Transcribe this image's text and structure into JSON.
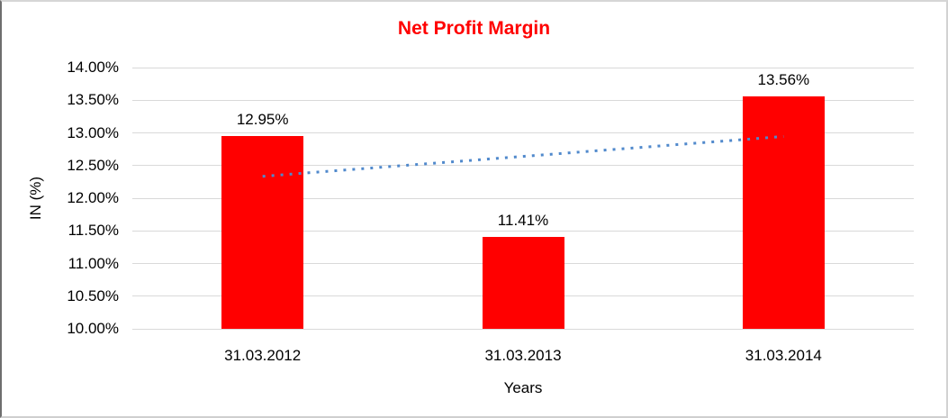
{
  "chart_data": {
    "type": "bar",
    "title": "Net Profit Margin",
    "xlabel": "Years",
    "ylabel": "IN (%)",
    "categories": [
      "31.03.2012",
      "31.03.2013",
      "31.03.2014"
    ],
    "values": [
      12.95,
      11.41,
      13.56
    ],
    "data_labels": [
      "12.95%",
      "11.41%",
      "13.56%"
    ],
    "ylim": [
      10.0,
      14.0
    ],
    "ytick_step": 0.5,
    "ytick_labels": [
      "10.00%",
      "10.50%",
      "11.00%",
      "11.50%",
      "12.00%",
      "12.50%",
      "13.00%",
      "13.50%",
      "14.00%"
    ],
    "grid": true,
    "legend": false,
    "colors": {
      "bar": "#ff0000",
      "title": "#ff0000",
      "gridline": "#d9d9d9",
      "trendline": "#5089cc",
      "text": "#000000"
    },
    "trendline": {
      "type": "linear",
      "style": "dotted",
      "start_value": 12.335,
      "end_value": 12.945
    }
  }
}
